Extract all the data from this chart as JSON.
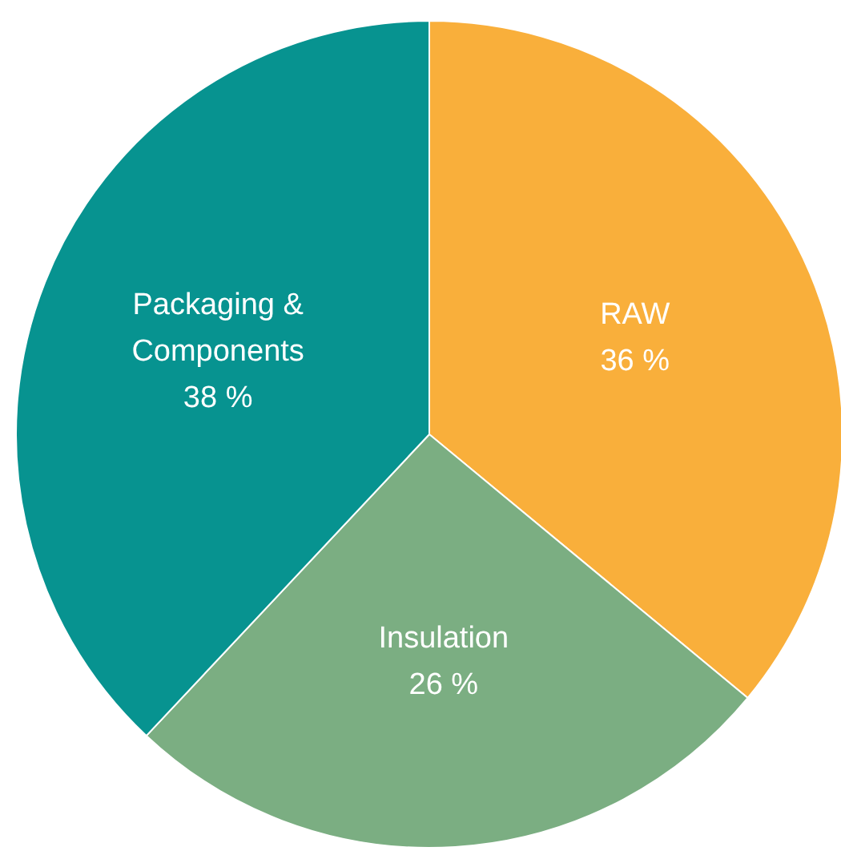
{
  "chart_data": {
    "type": "pie",
    "categories": [
      "RAW",
      "Insulation",
      "Packaging & Components"
    ],
    "values": [
      36,
      26,
      38
    ],
    "colors": [
      "#f9af3b",
      "#7bae82",
      "#079390"
    ],
    "value_labels": [
      "36 %",
      "26 %",
      "38 %"
    ]
  }
}
